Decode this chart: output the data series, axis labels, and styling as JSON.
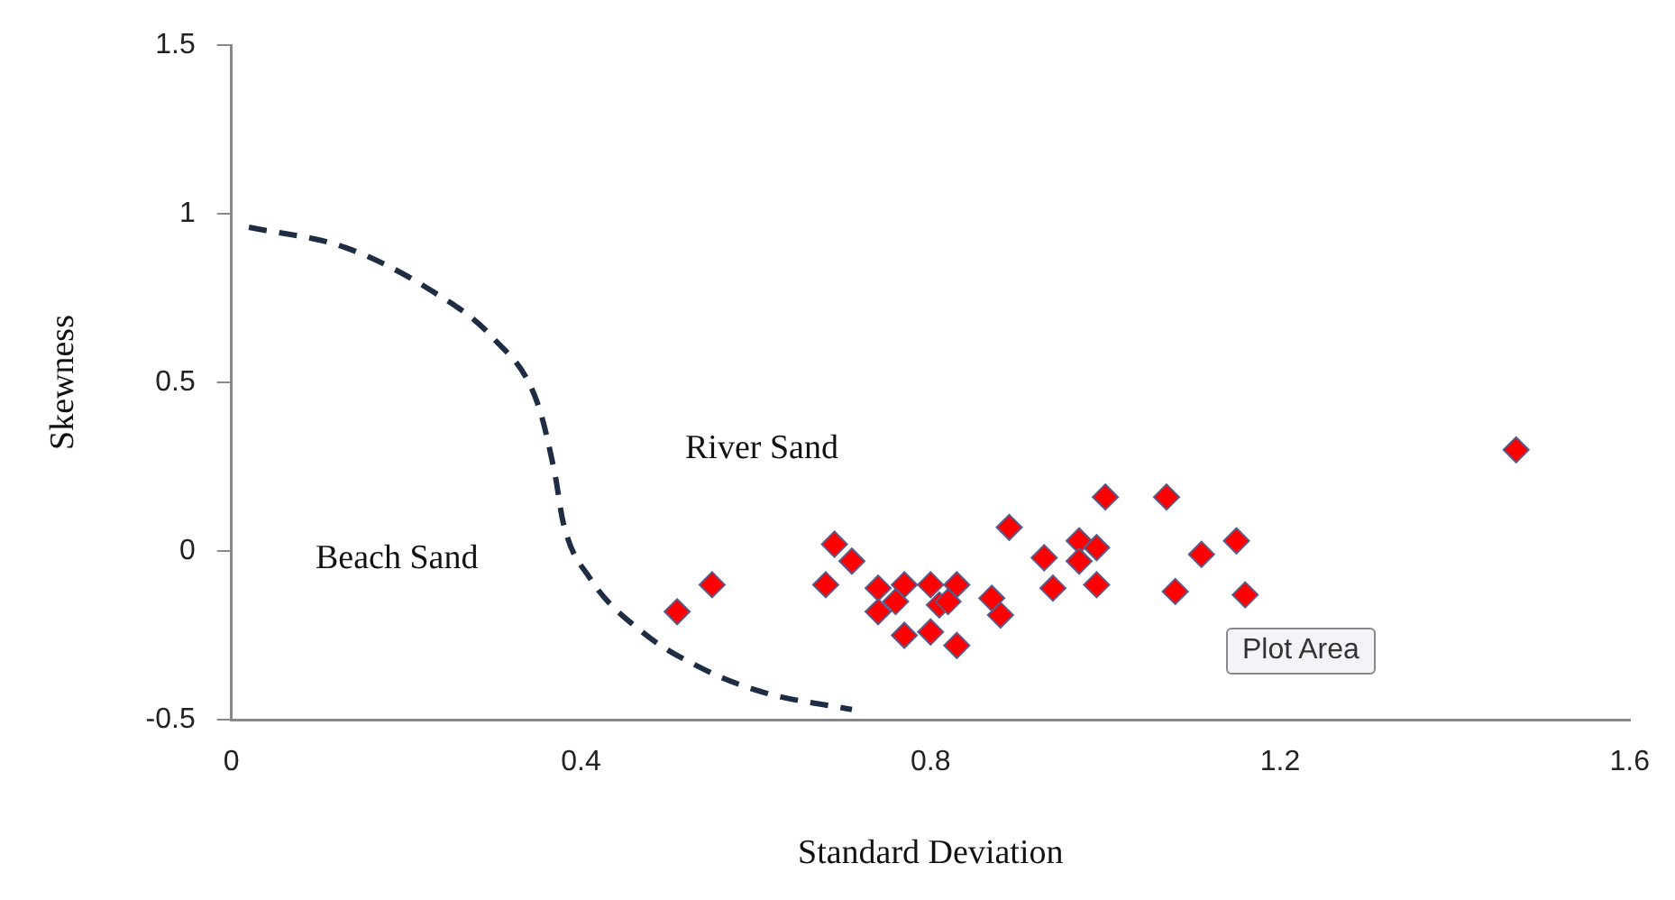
{
  "chart_data": {
    "type": "scatter",
    "xlabel": "Standard Deviation",
    "ylabel": "Skewness",
    "xlim": [
      0,
      1.6
    ],
    "xticks": [
      0,
      0.4,
      0.8,
      1.2,
      1.6
    ],
    "ylim": [
      -0.5,
      1.5
    ],
    "yticks": [
      -0.5,
      0,
      0.5,
      1,
      1.5
    ],
    "grid": false,
    "legend": false,
    "marker": "diamond",
    "series": [
      {
        "color": "#ff0000",
        "x": [
          0.51,
          0.55,
          0.69,
          0.71,
          0.68,
          0.74,
          0.77,
          0.74,
          0.76,
          0.77,
          0.8,
          0.83,
          0.81,
          0.82,
          0.8,
          0.83,
          0.87,
          0.88,
          0.89,
          0.93,
          0.94,
          0.97,
          0.97,
          0.99,
          0.99,
          1.0,
          1.07,
          1.08,
          1.47,
          1.11,
          1.15,
          1.16
        ],
        "values": [
          -0.18,
          -0.1,
          0.02,
          -0.03,
          -0.1,
          -0.11,
          -0.1,
          -0.18,
          -0.15,
          -0.25,
          -0.1,
          -0.1,
          -0.16,
          -0.15,
          -0.24,
          -0.28,
          -0.14,
          -0.19,
          0.07,
          -0.02,
          -0.11,
          0.03,
          -0.03,
          0.01,
          -0.1,
          0.16,
          0.16,
          -0.12,
          0.3,
          -0.01,
          0.03,
          -0.13
        ]
      },
      {
        "type": "line",
        "color": "#1f2d44",
        "marker": "none",
        "line_style": "dashed",
        "x": [
          0.02,
          0.13,
          0.23,
          0.3,
          0.35,
          0.37,
          0.38,
          0.41,
          0.47,
          0.54,
          0.61,
          0.71
        ],
        "values": [
          0.96,
          0.9,
          0.77,
          0.63,
          0.44,
          0.23,
          0.08,
          -0.08,
          -0.24,
          -0.35,
          -0.42,
          -0.47
        ]
      }
    ],
    "annotations": [
      "River Sand",
      "Beach Sand",
      "Plot Area"
    ]
  }
}
